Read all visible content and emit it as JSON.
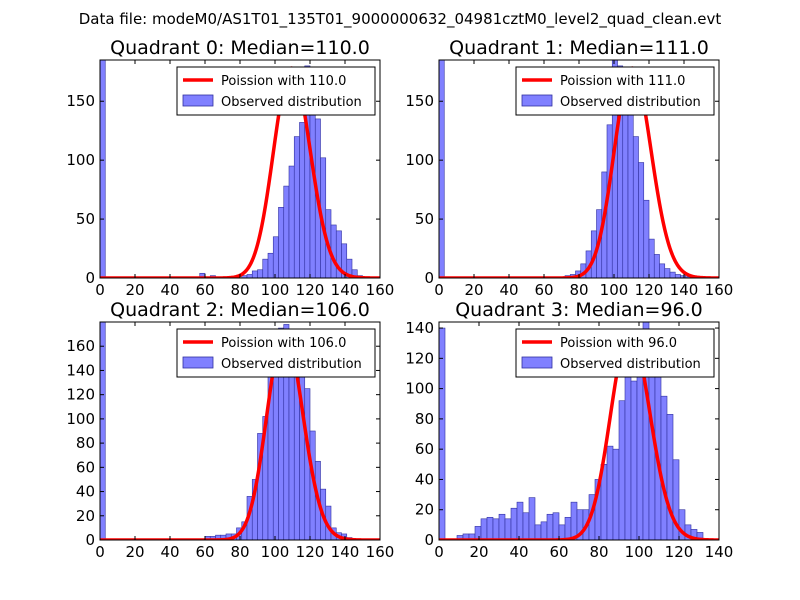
{
  "figure": {
    "suptitle": "Data file: modeM0/AS1T01_135T01_9000000632_04981cztM0_level2_quad_clean.evt"
  },
  "colors": {
    "hist_fill": "#8080ff",
    "hist_edge": "#3030a0",
    "poisson_line": "#ff0000",
    "axes": "#000000"
  },
  "chart_data": [
    {
      "type": "bar",
      "title": "Quadrant 0: Median=110.0",
      "xlim": [
        0,
        160
      ],
      "ylim": [
        0,
        185
      ],
      "xticks": [
        0,
        20,
        40,
        60,
        80,
        100,
        120,
        140,
        160
      ],
      "yticks": [
        0,
        50,
        100,
        150
      ],
      "bin_start": 0,
      "bin_width": 3,
      "values": [
        185,
        0,
        0,
        0,
        0,
        0,
        0,
        0,
        0,
        0,
        0,
        0,
        0,
        0,
        0,
        0,
        0,
        0,
        0,
        4,
        0,
        2,
        0,
        0,
        0,
        0,
        0,
        2,
        3,
        6,
        7,
        16,
        21,
        35,
        60,
        78,
        95,
        120,
        132,
        180,
        145,
        135,
        102,
        58,
        45,
        40,
        29,
        16,
        7,
        2
      ],
      "poisson_mu": 110.0,
      "poisson_peak": 178,
      "legend": [
        "Poission with 110.0",
        "Observed distribution"
      ]
    },
    {
      "type": "bar",
      "title": "Quadrant 1: Median=111.0",
      "xlim": [
        0,
        160
      ],
      "ylim": [
        0,
        185
      ],
      "xticks": [
        0,
        20,
        40,
        60,
        80,
        100,
        120,
        140,
        160
      ],
      "yticks": [
        0,
        50,
        100,
        150
      ],
      "bin_start": 0,
      "bin_width": 3,
      "values": [
        185,
        0,
        0,
        0,
        0,
        0,
        0,
        0,
        0,
        0,
        0,
        0,
        0,
        0,
        0,
        0,
        0,
        0,
        1,
        1,
        0,
        0,
        0,
        0,
        2,
        3,
        6,
        12,
        23,
        40,
        58,
        90,
        130,
        185,
        180,
        167,
        160,
        120,
        98,
        66,
        33,
        20,
        12,
        8,
        5,
        3,
        2,
        1,
        1,
        0
      ],
      "poisson_mu": 111.0,
      "poisson_peak": 178,
      "legend": [
        "Poission with 111.0",
        "Observed distribution"
      ]
    },
    {
      "type": "bar",
      "title": "Quadrant 2: Median=106.0",
      "xlim": [
        0,
        160
      ],
      "ylim": [
        0,
        180
      ],
      "xticks": [
        0,
        20,
        40,
        60,
        80,
        100,
        120,
        140,
        160
      ],
      "yticks": [
        0,
        20,
        40,
        60,
        80,
        100,
        120,
        140,
        160
      ],
      "bin_start": 0,
      "bin_width": 3,
      "values": [
        180,
        0,
        0,
        0,
        0,
        0,
        0,
        0,
        0,
        0,
        0,
        0,
        0,
        0,
        0,
        0,
        0,
        0,
        0,
        0,
        3,
        3,
        4,
        4,
        5,
        5,
        10,
        15,
        36,
        50,
        88,
        102,
        150,
        160,
        175,
        178,
        170,
        160,
        140,
        125,
        90,
        65,
        42,
        28,
        10,
        6,
        5,
        2,
        1,
        0
      ],
      "poisson_mu": 106.0,
      "poisson_peak": 171,
      "legend": [
        "Poission with 106.0",
        "Observed distribution"
      ]
    },
    {
      "type": "bar",
      "title": "Quadrant 3: Median=96.0",
      "xlim": [
        0,
        140
      ],
      "ylim": [
        0,
        144
      ],
      "xticks": [
        0,
        20,
        40,
        60,
        80,
        100,
        120,
        140
      ],
      "yticks": [
        0,
        20,
        40,
        60,
        80,
        100,
        120,
        140
      ],
      "bin_start": 0,
      "bin_width": 3,
      "values": [
        140,
        0,
        0,
        3,
        4,
        4,
        9,
        14,
        15,
        14,
        17,
        14,
        21,
        25,
        18,
        28,
        10,
        12,
        17,
        18,
        10,
        15,
        25,
        20,
        20,
        30,
        40,
        50,
        62,
        60,
        92,
        115,
        105,
        125,
        144,
        125,
        120,
        95,
        83,
        53,
        20,
        10,
        7,
        5
      ],
      "poisson_mu": 96.0,
      "poisson_peak": 138,
      "legend": [
        "Poission with 96.0",
        "Observed distribution"
      ]
    }
  ]
}
